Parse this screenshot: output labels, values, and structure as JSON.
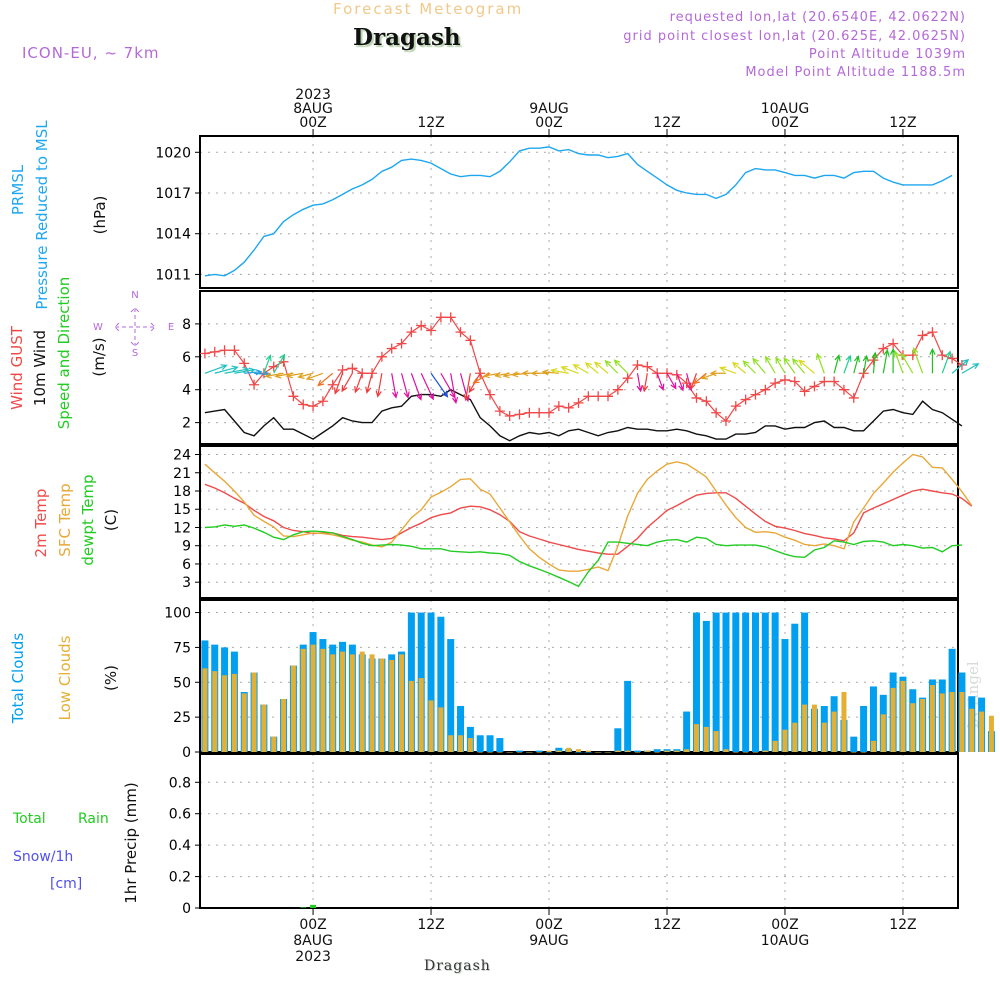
{
  "header": {
    "title": "Forecast Meteogram",
    "location": "Dragash",
    "model": "ICON-EU, ~ 7km",
    "requested": "requested lon,lat (20.6540E, 42.0622N)",
    "grid_point": "grid point closest lon,lat (20.625E, 42.0625N)",
    "point_altitude": "Point Altitude 1039m",
    "model_altitude": "Model Point Altitude 1188.5m"
  },
  "footer": {
    "location": "Dragash",
    "credit": "by Angel"
  },
  "time_axis": {
    "top_ticks": [
      {
        "hour": 0,
        "lines": [
          "2023",
          "8AUG",
          "00Z"
        ]
      },
      {
        "hour": 12,
        "lines": [
          "12Z"
        ]
      },
      {
        "hour": 24,
        "lines": [
          "9AUG",
          "00Z"
        ]
      },
      {
        "hour": 36,
        "lines": [
          "12Z"
        ]
      },
      {
        "hour": 48,
        "lines": [
          "10AUG",
          "00Z"
        ]
      },
      {
        "hour": 60,
        "lines": [
          "12Z"
        ]
      }
    ],
    "bottom_ticks": [
      {
        "hour": 0,
        "lines": [
          "00Z",
          "8AUG",
          "2023"
        ]
      },
      {
        "hour": 12,
        "lines": [
          "12Z"
        ]
      },
      {
        "hour": 24,
        "lines": [
          "00Z",
          "9AUG"
        ]
      },
      {
        "hour": 36,
        "lines": [
          "12Z"
        ]
      },
      {
        "hour": 48,
        "lines": [
          "00Z",
          "10AUG"
        ]
      },
      {
        "hour": 60,
        "lines": [
          "12Z"
        ]
      }
    ],
    "range_hours": [
      -11.5,
      65.6
    ]
  },
  "colors": {
    "pressure": "#1ea7f0",
    "gust": "#f04848",
    "wind": "#111111",
    "temp2m": "#ef4b4b",
    "sfc": "#e8a838",
    "dewpt": "#22cc22",
    "total_clouds": "#009ff0",
    "low_clouds": "#e3b035",
    "rain": "#22cc22",
    "snow": "#5050ee",
    "compass": "#b469d9"
  },
  "chart_data": [
    {
      "type": "line",
      "id": "pressure",
      "labels": [
        "PRMSL",
        "Pressure Reduced to MSL",
        "(hPa)"
      ],
      "ylim": [
        1010,
        1021.2
      ],
      "yticks": [
        1011,
        1014,
        1017,
        1020
      ],
      "x_start_hour": -11,
      "series": [
        {
          "name": "PRMSL",
          "values": [
            1010.9,
            1011.0,
            1010.9,
            1011.3,
            1011.9,
            1012.8,
            1013.8,
            1014.0,
            1014.9,
            1015.4,
            1015.8,
            1016.1,
            1016.2,
            1016.5,
            1016.9,
            1017.3,
            1017.6,
            1018.0,
            1018.6,
            1018.9,
            1019.4,
            1019.5,
            1019.4,
            1019.2,
            1018.8,
            1018.4,
            1018.2,
            1018.3,
            1018.3,
            1018.2,
            1018.6,
            1019.3,
            1020.1,
            1020.3,
            1020.3,
            1020.4,
            1020.1,
            1020.2,
            1019.9,
            1019.8,
            1019.8,
            1019.6,
            1019.7,
            1019.9,
            1019.1,
            1018.6,
            1018.1,
            1017.6,
            1017.2,
            1017.0,
            1016.9,
            1016.9,
            1016.6,
            1016.9,
            1017.6,
            1018.5,
            1018.8,
            1018.7,
            1018.7,
            1018.5,
            1018.3,
            1018.3,
            1018.1,
            1018.3,
            1018.3,
            1018.1,
            1018.5,
            1018.6,
            1018.6,
            1018.1,
            1017.8,
            1017.6,
            1017.6,
            1017.6,
            1017.6,
            1017.9,
            1018.3
          ]
        }
      ]
    },
    {
      "type": "line",
      "id": "wind",
      "labels": [
        "Wind GUST",
        "10m Wind",
        "Speed and Direction",
        "(m/s)"
      ],
      "compass": {
        "n": "N",
        "s": "S",
        "w": "W",
        "e": "E"
      },
      "ylim": [
        0.7,
        10.0
      ],
      "yticks": [
        2,
        4,
        6,
        8
      ],
      "x_start_hour": -11,
      "series": [
        {
          "name": "Wind GUST",
          "values": [
            6.2,
            6.3,
            6.4,
            6.4,
            5.6,
            4.3,
            5.0,
            5.4,
            5.7,
            3.6,
            3.1,
            3.0,
            3.3,
            4.3,
            5.2,
            5.3,
            5.0,
            5.0,
            6.0,
            6.5,
            6.8,
            7.5,
            7.9,
            7.6,
            8.4,
            8.4,
            7.5,
            7.0,
            5.0,
            3.7,
            2.7,
            2.4,
            2.5,
            2.6,
            2.6,
            2.6,
            3.0,
            2.9,
            3.2,
            3.6,
            3.6,
            3.6,
            4.0,
            4.7,
            5.5,
            5.4,
            5.0,
            5.0,
            4.9,
            4.4,
            3.5,
            3.3,
            2.6,
            2.1,
            3.0,
            3.4,
            3.7,
            4.0,
            4.4,
            4.6,
            4.5,
            3.9,
            4.2,
            4.5,
            4.5,
            4.0,
            3.5,
            5.0,
            5.8,
            6.5,
            6.8,
            6.1,
            6.1,
            7.3,
            7.5,
            6.1,
            5.9,
            5.5
          ]
        },
        {
          "name": "10m Wind",
          "values": [
            2.6,
            2.7,
            2.8,
            2.1,
            1.4,
            1.2,
            1.8,
            2.3,
            1.6,
            1.6,
            1.3,
            1.0,
            1.4,
            1.8,
            2.3,
            2.1,
            2.0,
            2.0,
            2.7,
            2.9,
            3.0,
            3.6,
            3.7,
            3.7,
            3.6,
            4.0,
            3.7,
            3.4,
            2.3,
            1.8,
            1.2,
            0.9,
            1.2,
            1.4,
            1.3,
            1.4,
            1.2,
            1.5,
            1.6,
            1.4,
            1.2,
            1.4,
            1.5,
            1.7,
            1.6,
            1.6,
            1.5,
            1.5,
            1.6,
            1.5,
            1.3,
            1.2,
            1.0,
            1.0,
            1.3,
            1.3,
            1.4,
            1.8,
            1.8,
            1.6,
            1.7,
            1.7,
            2.0,
            2.1,
            1.7,
            1.7,
            1.5,
            1.5,
            2.1,
            2.7,
            2.8,
            2.6,
            2.5,
            3.3,
            2.8,
            2.6,
            2.2,
            1.8
          ]
        },
        {
          "name": "Wind direction (deg, from)",
          "values": [
            250,
            255,
            260,
            260,
            265,
            275,
            200,
            210,
            80,
            80,
            80,
            75,
            70,
            50,
            20,
            30,
            20,
            15,
            10,
            350,
            345,
            340,
            335,
            325,
            330,
            350,
            345,
            10,
            30,
            60,
            80,
            80,
            80,
            85,
            90,
            90,
            95,
            100,
            110,
            120,
            130,
            130,
            135,
            135,
            350,
            10,
            340,
            330,
            340,
            345,
            20,
            50,
            70,
            90,
            110,
            130,
            135,
            140,
            150,
            150,
            145,
            140,
            130,
            160,
            195,
            200,
            195,
            190,
            185,
            190,
            180,
            160,
            150,
            160,
            180,
            200,
            230,
            240
          ]
        }
      ]
    },
    {
      "type": "line",
      "id": "temperature",
      "labels": [
        "2m Temp",
        "SFC Temp",
        "dewpt Temp",
        "(C)"
      ],
      "ylim": [
        0.4,
        25.4
      ],
      "yticks": [
        3,
        6,
        9,
        12,
        15,
        18,
        21,
        24
      ],
      "x_start_hour": -11,
      "series": [
        {
          "name": "2m Temp",
          "values": [
            19.1,
            18.5,
            17.7,
            16.8,
            16.0,
            14.8,
            13.8,
            13.1,
            12.0,
            11.5,
            11.3,
            11.0,
            11.1,
            11.1,
            10.7,
            10.5,
            10.4,
            10.2,
            10.0,
            10.2,
            11.1,
            12.0,
            12.7,
            13.6,
            14.1,
            14.4,
            15.2,
            15.5,
            15.4,
            14.9,
            14.1,
            13.0,
            11.3,
            10.6,
            10.1,
            9.6,
            9.2,
            8.8,
            8.4,
            8.1,
            7.8,
            7.6,
            7.6,
            8.9,
            10.2,
            12.0,
            13.4,
            14.8,
            15.6,
            16.5,
            17.3,
            17.6,
            17.7,
            17.7,
            16.8,
            15.5,
            14.2,
            13.0,
            12.2,
            11.9,
            11.5,
            11.0,
            10.7,
            10.3,
            10.1,
            9.8,
            11.1,
            14.4,
            15.2,
            15.9,
            16.6,
            17.3,
            18.0,
            18.3,
            18.0,
            17.7,
            17.5,
            16.8,
            15.5
          ]
        },
        {
          "name": "SFC Temp",
          "values": [
            22.4,
            21.0,
            19.6,
            18.0,
            16.2,
            14.0,
            13.0,
            12.1,
            10.6,
            10.5,
            10.8,
            11.1,
            11.0,
            10.8,
            10.4,
            9.9,
            9.6,
            9.1,
            8.8,
            9.6,
            11.6,
            13.6,
            14.9,
            17.0,
            17.8,
            18.7,
            19.9,
            20.0,
            18.3,
            17.5,
            15.2,
            12.9,
            10.6,
            8.5,
            7.1,
            6.0,
            5.0,
            4.8,
            4.8,
            5.1,
            5.5,
            4.9,
            8.9,
            13.9,
            17.6,
            19.9,
            21.3,
            22.4,
            22.8,
            22.4,
            21.4,
            20.3,
            18.0,
            15.7,
            13.6,
            12.0,
            11.2,
            11.3,
            11.1,
            10.4,
            9.9,
            9.2,
            9.0,
            9.3,
            9.0,
            8.5,
            12.9,
            15.2,
            17.6,
            19.3,
            21.1,
            22.6,
            24.0,
            23.6,
            21.9,
            21.8,
            19.9,
            17.9,
            15.6
          ]
        },
        {
          "name": "dewpt Temp",
          "values": [
            12.0,
            12.1,
            12.4,
            12.2,
            12.4,
            11.9,
            11.2,
            10.4,
            10.0,
            10.8,
            11.3,
            11.4,
            11.3,
            11.1,
            10.5,
            10.0,
            9.4,
            9.0,
            9.1,
            9.2,
            9.1,
            8.9,
            8.5,
            8.5,
            8.5,
            8.1,
            8.0,
            7.9,
            8.0,
            7.8,
            7.7,
            7.4,
            6.4,
            5.7,
            5.1,
            4.5,
            3.8,
            3.1,
            2.3,
            4.7,
            6.6,
            9.6,
            9.6,
            9.4,
            9.2,
            9.0,
            9.6,
            9.9,
            10.0,
            9.6,
            10.4,
            10.2,
            9.2,
            9.0,
            9.1,
            9.1,
            9.1,
            8.8,
            8.2,
            7.6,
            7.2,
            7.1,
            8.3,
            8.7,
            9.8,
            9.6,
            9.2,
            9.7,
            9.8,
            9.6,
            9.0,
            9.2,
            9.0,
            8.6,
            8.7,
            8.0,
            9.0,
            9.1
          ]
        }
      ]
    },
    {
      "type": "bar",
      "id": "clouds",
      "labels": [
        "Total Clouds",
        "Low Clouds",
        "(%)"
      ],
      "ylim": [
        0,
        109
      ],
      "yticks": [
        0,
        25,
        50,
        75,
        100
      ],
      "x_start_hour": -11,
      "series": [
        {
          "name": "Total Clouds",
          "values": [
            80,
            77,
            75,
            72,
            43,
            57,
            34,
            11,
            38,
            62,
            77,
            86,
            81,
            77,
            79,
            77,
            70,
            67,
            67,
            70,
            72,
            100,
            100,
            100,
            97,
            81,
            33,
            18,
            12,
            12,
            10,
            0,
            1,
            0,
            1,
            0,
            3,
            2,
            0,
            0,
            0,
            0,
            17,
            51,
            1,
            1,
            2,
            2,
            2,
            29,
            100,
            94,
            100,
            100,
            100,
            100,
            100,
            100,
            100,
            81,
            92,
            100,
            31,
            33,
            40,
            23,
            11,
            33,
            47,
            41,
            57,
            54,
            45,
            39,
            52,
            52,
            74,
            57,
            40,
            39,
            15
          ]
        },
        {
          "name": "Low Clouds",
          "values": [
            60,
            58,
            55,
            56,
            42,
            57,
            34,
            11,
            38,
            62,
            74,
            77,
            74,
            70,
            72,
            70,
            72,
            70,
            67,
            66,
            70,
            51,
            53,
            37,
            32,
            12,
            12,
            10,
            0,
            0,
            0,
            0,
            0,
            0,
            0,
            1,
            1,
            3,
            2,
            1,
            0,
            0,
            1,
            1,
            0,
            1,
            0,
            1,
            1,
            2,
            20,
            18,
            15,
            2,
            0,
            0,
            0,
            1,
            8,
            16,
            21,
            34,
            34,
            21,
            29,
            43,
            0,
            0,
            8,
            27,
            46,
            51,
            35,
            38,
            48,
            42,
            43,
            43,
            31,
            29,
            26,
            14
          ]
        }
      ]
    },
    {
      "type": "bar",
      "id": "precip",
      "labels": [
        "Total",
        "Rain",
        "Snow/1h",
        "[cm]",
        "1hr Precip (mm)"
      ],
      "ylim": [
        0,
        0.98
      ],
      "yticks": [
        0,
        0.2,
        0.4,
        0.6,
        0.8
      ],
      "series": [
        {
          "name": "Total Rain",
          "points": [
            {
              "hour": -1,
              "value": 0.004
            },
            {
              "hour": 0,
              "value": 0.02
            }
          ]
        },
        {
          "name": "Snow/1h",
          "points": []
        }
      ]
    }
  ]
}
